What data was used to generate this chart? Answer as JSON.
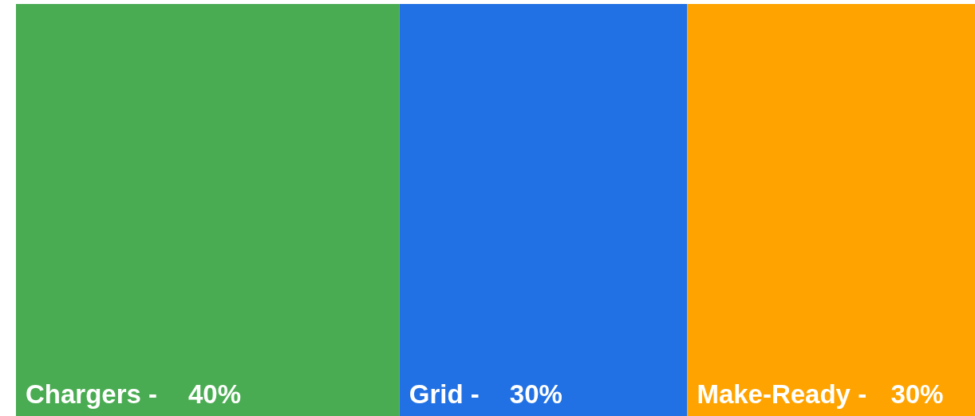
{
  "chart_data": {
    "type": "other",
    "categories": [
      "Chargers -",
      "Grid -",
      "Make-Ready -"
    ],
    "values": [
      40,
      30,
      30
    ],
    "value_labels": [
      "40%",
      "30%",
      "30%"
    ],
    "colors": [
      "#4aac52",
      "#2171e4",
      "#ffa300"
    ]
  }
}
